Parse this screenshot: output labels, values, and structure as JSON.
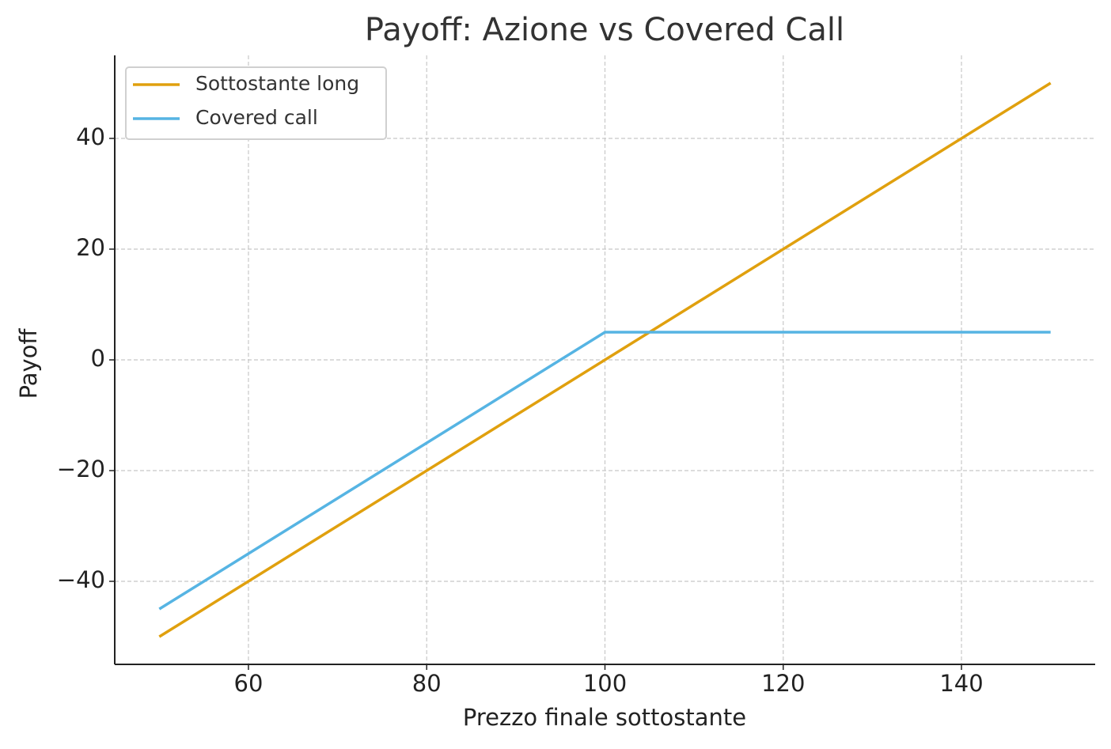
{
  "chart_data": {
    "type": "line",
    "title": "Payoff: Azione vs Covered Call",
    "x_label": "Prezzo finale sottostante",
    "y_label": "Payoff",
    "x": [
      50,
      100,
      150
    ],
    "series": [
      {
        "name": "Sottostante long",
        "color": "#e0a00e",
        "values": [
          -50,
          0,
          50
        ]
      },
      {
        "name": "Covered call",
        "color": "#56b4e3",
        "values": [
          -45,
          5,
          5
        ]
      }
    ],
    "xlim": [
      45,
      155
    ],
    "ylim": [
      -55,
      55
    ],
    "xticks": [
      60,
      80,
      100,
      120,
      140
    ],
    "yticks": [
      {
        "value": -40,
        "label": "−40"
      },
      {
        "value": -20,
        "label": "−20"
      },
      0,
      20,
      40
    ],
    "grid": true,
    "legend": "upper left"
  }
}
